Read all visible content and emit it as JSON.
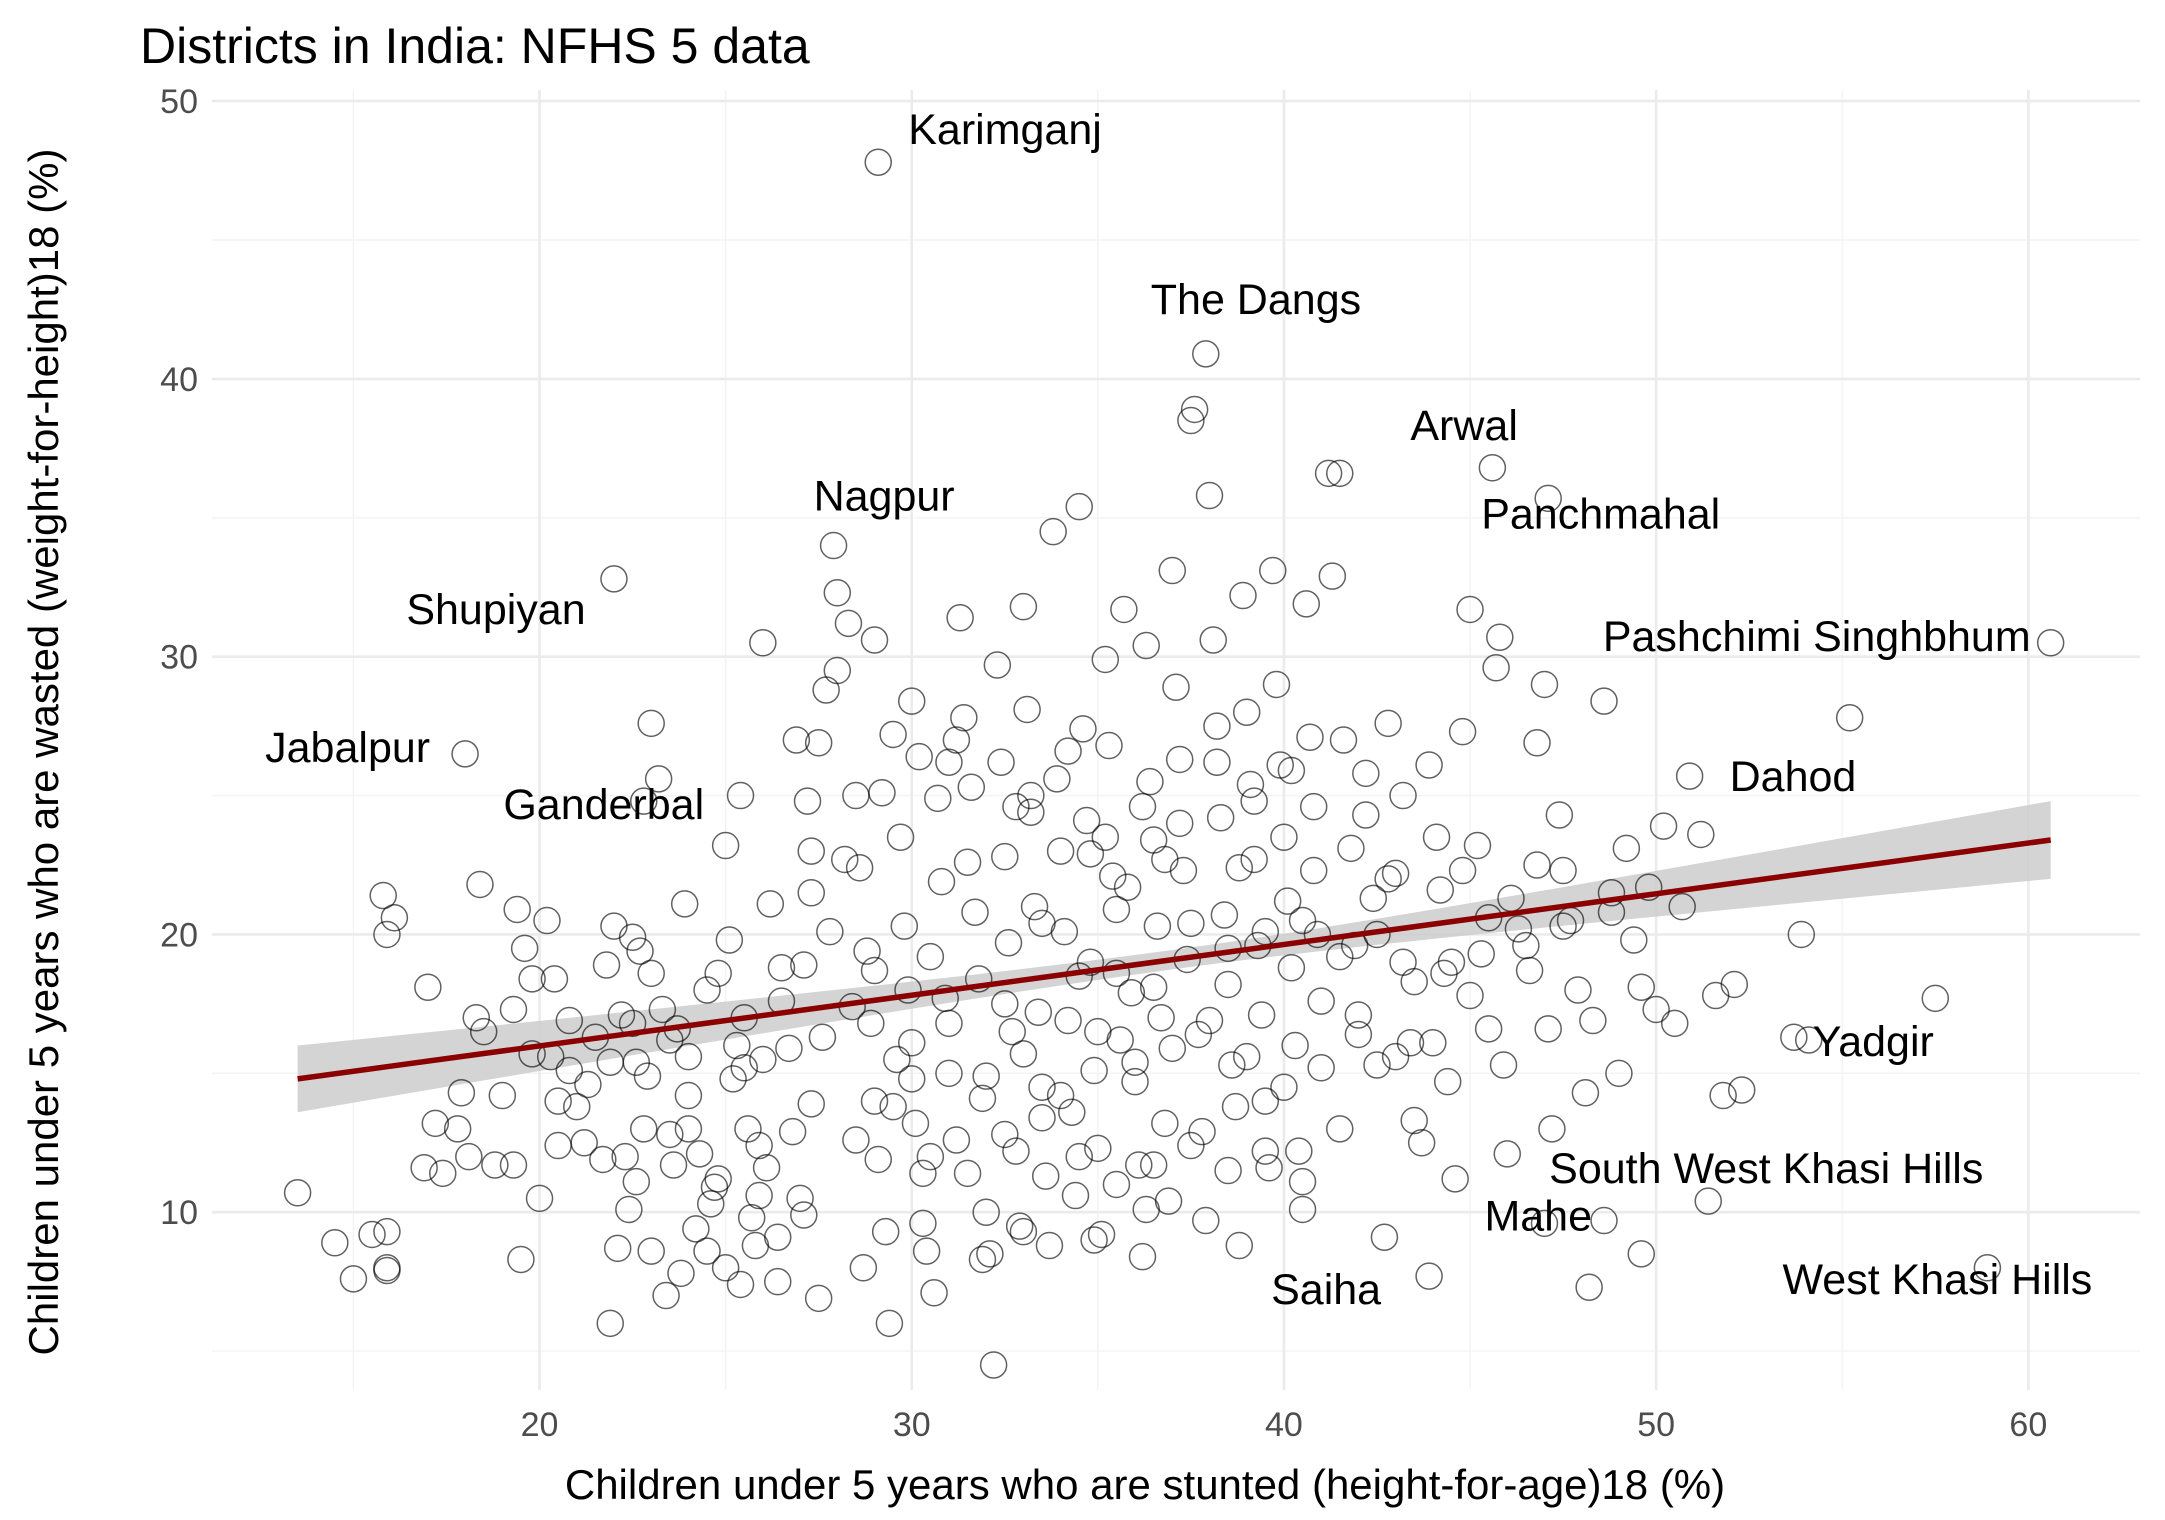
{
  "chart_data": {
    "type": "scatter",
    "title": "Districts in India: NFHS 5 data",
    "xlabel": "Children under 5 years who are stunted (height-for-age)18 (%)",
    "ylabel": "Children under 5 years who are wasted (weight-for-height)18 (%)",
    "xlim": [
      11.2,
      63.0
    ],
    "ylim": [
      3.6,
      50.4
    ],
    "x_ticks": [
      20,
      30,
      40,
      50,
      60
    ],
    "y_ticks": [
      10,
      20,
      30,
      40,
      50
    ],
    "grid": true,
    "colors": {
      "points": "#000000",
      "fit_line": "#8b0000",
      "confidence_band": "#cccccc"
    },
    "trend_line": {
      "x": [
        13.5,
        60.6
      ],
      "y": [
        14.8,
        23.4
      ],
      "band_halfwidth_ends": [
        1.2,
        1.4
      ],
      "band_halfwidth_mid": 0.35
    },
    "labeled_districts": [
      {
        "label": "Karimganj",
        "x": 29.1,
        "y": 47.8
      },
      {
        "label": "The Dangs",
        "x": 37.9,
        "y": 40.9
      },
      {
        "label": "Arwal",
        "x": 45.6,
        "y": 36.8
      },
      {
        "label": "Nagpur",
        "x": 27.9,
        "y": 34.0
      },
      {
        "label": "Panchmahal",
        "x": 47.1,
        "y": 35.7
      },
      {
        "label": "Shupiyan",
        "x": 22.0,
        "y": 32.8
      },
      {
        "label": "Pashchimi Singhbhum",
        "x": 60.6,
        "y": 30.5
      },
      {
        "label": "Jabalpur",
        "x": 18.0,
        "y": 26.5
      },
      {
        "label": "Dahod",
        "x": 50.9,
        "y": 25.7
      },
      {
        "label": "Ganderbal",
        "x": 22.8,
        "y": 24.8
      },
      {
        "label": "Yadgir",
        "x": 54.1,
        "y": 16.2
      },
      {
        "label": "South West Khasi Hills",
        "x": 51.4,
        "y": 10.4
      },
      {
        "label": "Mahe",
        "x": 48.6,
        "y": 9.7
      },
      {
        "label": "Saiha",
        "x": 43.9,
        "y": 7.7
      },
      {
        "label": "West Khasi Hills",
        "x": 58.9,
        "y": 8.0
      }
    ],
    "points": [
      [
        13.5,
        10.7
      ],
      [
        14.5,
        8.9
      ],
      [
        15.0,
        7.6
      ],
      [
        15.5,
        9.2
      ],
      [
        15.9,
        8.0
      ],
      [
        15.8,
        21.4
      ],
      [
        15.9,
        20.0
      ],
      [
        16.1,
        20.6
      ],
      [
        15.9,
        9.3
      ],
      [
        15.9,
        7.9
      ],
      [
        17.0,
        18.1
      ],
      [
        17.2,
        13.2
      ],
      [
        16.9,
        11.6
      ],
      [
        17.4,
        11.4
      ],
      [
        17.8,
        13.0
      ],
      [
        17.9,
        14.3
      ],
      [
        18.1,
        12.0
      ],
      [
        18.3,
        17.0
      ],
      [
        18.4,
        21.8
      ],
      [
        18.8,
        11.7
      ],
      [
        19.4,
        20.9
      ],
      [
        19.3,
        17.3
      ],
      [
        19.3,
        11.7
      ],
      [
        19.5,
        8.3
      ],
      [
        19.6,
        19.5
      ],
      [
        19.8,
        18.4
      ],
      [
        20.0,
        10.5
      ],
      [
        20.2,
        20.5
      ],
      [
        20.3,
        15.6
      ],
      [
        20.4,
        18.4
      ],
      [
        20.5,
        14.0
      ],
      [
        20.8,
        15.1
      ],
      [
        21.0,
        13.8
      ],
      [
        21.2,
        12.5
      ],
      [
        21.5,
        16.3
      ],
      [
        21.7,
        11.9
      ],
      [
        21.9,
        15.4
      ],
      [
        22.0,
        20.3
      ],
      [
        22.2,
        17.1
      ],
      [
        22.3,
        12.0
      ],
      [
        22.5,
        19.9
      ],
      [
        22.6,
        15.4
      ],
      [
        22.7,
        19.4
      ],
      [
        22.9,
        14.9
      ],
      [
        23.0,
        27.6
      ],
      [
        23.2,
        25.6
      ],
      [
        23.3,
        17.3
      ],
      [
        23.5,
        12.8
      ],
      [
        23.7,
        16.6
      ],
      [
        23.9,
        21.1
      ],
      [
        24.0,
        14.2
      ],
      [
        24.2,
        9.4
      ],
      [
        24.3,
        12.1
      ],
      [
        24.5,
        18.0
      ],
      [
        24.6,
        10.3
      ],
      [
        24.8,
        11.2
      ],
      [
        25.0,
        23.2
      ],
      [
        25.1,
        19.8
      ],
      [
        25.3,
        16.0
      ],
      [
        25.4,
        25.0
      ],
      [
        25.5,
        15.2
      ],
      [
        25.6,
        13.0
      ],
      [
        25.8,
        8.8
      ],
      [
        25.9,
        12.4
      ],
      [
        26.0,
        30.5
      ],
      [
        26.2,
        21.1
      ],
      [
        26.4,
        9.1
      ],
      [
        26.5,
        17.6
      ],
      [
        26.7,
        15.9
      ],
      [
        26.8,
        12.9
      ],
      [
        21.9,
        6.0
      ],
      [
        22.1,
        8.7
      ],
      [
        22.4,
        10.1
      ],
      [
        23.0,
        8.6
      ],
      [
        23.4,
        7.0
      ],
      [
        23.8,
        7.8
      ],
      [
        24.5,
        8.6
      ],
      [
        25.0,
        8.0
      ],
      [
        25.4,
        7.4
      ],
      [
        25.7,
        9.8
      ],
      [
        26.1,
        11.6
      ],
      [
        26.4,
        7.5
      ],
      [
        27.0,
        10.5
      ],
      [
        27.5,
        6.9
      ],
      [
        27.3,
        13.9
      ],
      [
        27.1,
        18.9
      ],
      [
        27.3,
        21.5
      ],
      [
        27.2,
        24.8
      ],
      [
        27.5,
        26.9
      ],
      [
        27.7,
        28.8
      ],
      [
        28.0,
        32.3
      ],
      [
        28.3,
        31.2
      ],
      [
        28.5,
        25.0
      ],
      [
        28.6,
        22.4
      ],
      [
        28.8,
        19.4
      ],
      [
        28.9,
        16.8
      ],
      [
        29.0,
        14.0
      ],
      [
        29.1,
        11.9
      ],
      [
        29.3,
        9.3
      ],
      [
        29.4,
        6.0
      ],
      [
        29.5,
        27.2
      ],
      [
        29.7,
        23.5
      ],
      [
        29.8,
        20.3
      ],
      [
        29.9,
        18.0
      ],
      [
        30.0,
        16.1
      ],
      [
        30.1,
        13.2
      ],
      [
        30.3,
        11.4
      ],
      [
        30.4,
        8.6
      ],
      [
        30.6,
        7.1
      ],
      [
        30.7,
        24.9
      ],
      [
        30.8,
        21.9
      ],
      [
        30.9,
        17.7
      ],
      [
        31.0,
        15.0
      ],
      [
        31.2,
        12.6
      ],
      [
        31.3,
        31.4
      ],
      [
        31.4,
        27.8
      ],
      [
        31.6,
        25.3
      ],
      [
        31.7,
        20.8
      ],
      [
        31.8,
        18.4
      ],
      [
        31.9,
        14.1
      ],
      [
        32.0,
        10.0
      ],
      [
        32.1,
        8.5
      ],
      [
        32.2,
        4.5
      ],
      [
        32.3,
        29.7
      ],
      [
        32.4,
        26.2
      ],
      [
        32.5,
        22.8
      ],
      [
        32.6,
        19.7
      ],
      [
        32.7,
        16.5
      ],
      [
        32.8,
        12.2
      ],
      [
        32.9,
        9.5
      ],
      [
        33.0,
        31.8
      ],
      [
        33.1,
        28.1
      ],
      [
        33.2,
        24.4
      ],
      [
        33.3,
        21.0
      ],
      [
        33.4,
        17.2
      ],
      [
        33.5,
        14.5
      ],
      [
        33.6,
        11.3
      ],
      [
        33.7,
        8.8
      ],
      [
        33.8,
        34.5
      ],
      [
        33.9,
        25.6
      ],
      [
        34.0,
        23.0
      ],
      [
        34.1,
        20.1
      ],
      [
        34.2,
        16.9
      ],
      [
        34.3,
        13.6
      ],
      [
        34.4,
        10.6
      ],
      [
        34.5,
        35.4
      ],
      [
        34.6,
        27.4
      ],
      [
        34.7,
        24.1
      ],
      [
        34.8,
        19.0
      ],
      [
        34.9,
        15.1
      ],
      [
        35.0,
        12.3
      ],
      [
        35.1,
        9.2
      ],
      [
        35.2,
        29.9
      ],
      [
        35.3,
        26.8
      ],
      [
        35.4,
        22.1
      ],
      [
        35.5,
        18.6
      ],
      [
        35.6,
        16.2
      ],
      [
        35.7,
        31.7
      ],
      [
        35.8,
        21.7
      ],
      [
        35.9,
        17.9
      ],
      [
        36.0,
        14.7
      ],
      [
        36.1,
        11.7
      ],
      [
        36.2,
        8.4
      ],
      [
        36.3,
        30.4
      ],
      [
        36.4,
        25.5
      ],
      [
        36.5,
        23.4
      ],
      [
        36.6,
        20.3
      ],
      [
        36.7,
        17.0
      ],
      [
        36.8,
        13.2
      ],
      [
        36.9,
        10.4
      ],
      [
        37.0,
        33.1
      ],
      [
        37.1,
        28.9
      ],
      [
        37.2,
        26.3
      ],
      [
        37.3,
        22.3
      ],
      [
        37.4,
        19.1
      ],
      [
        37.5,
        38.5
      ],
      [
        37.6,
        38.9
      ],
      [
        37.7,
        16.4
      ],
      [
        37.8,
        12.9
      ],
      [
        37.9,
        9.7
      ],
      [
        38.0,
        35.8
      ],
      [
        38.1,
        30.6
      ],
      [
        38.2,
        27.5
      ],
      [
        38.3,
        24.2
      ],
      [
        38.4,
        20.7
      ],
      [
        38.5,
        18.2
      ],
      [
        38.6,
        15.3
      ],
      [
        38.7,
        13.8
      ],
      [
        38.8,
        8.8
      ],
      [
        38.9,
        32.2
      ],
      [
        39.0,
        28.0
      ],
      [
        39.1,
        25.4
      ],
      [
        39.2,
        22.7
      ],
      [
        39.3,
        19.6
      ],
      [
        39.4,
        17.1
      ],
      [
        39.5,
        14.0
      ],
      [
        39.6,
        11.6
      ],
      [
        39.7,
        33.1
      ],
      [
        39.8,
        29.0
      ],
      [
        39.9,
        26.1
      ],
      [
        40.0,
        23.5
      ],
      [
        40.1,
        21.2
      ],
      [
        40.2,
        18.8
      ],
      [
        40.3,
        16.0
      ],
      [
        40.4,
        12.2
      ],
      [
        40.5,
        10.1
      ],
      [
        40.6,
        31.9
      ],
      [
        40.7,
        27.1
      ],
      [
        40.8,
        24.6
      ],
      [
        40.9,
        20.0
      ],
      [
        41.0,
        17.6
      ],
      [
        41.2,
        36.6
      ],
      [
        41.3,
        32.9
      ],
      [
        41.5,
        36.6
      ],
      [
        41.6,
        27.0
      ],
      [
        41.8,
        23.1
      ],
      [
        41.9,
        19.6
      ],
      [
        42.0,
        17.1
      ],
      [
        42.2,
        25.8
      ],
      [
        42.4,
        21.3
      ],
      [
        42.5,
        15.3
      ],
      [
        42.7,
        9.1
      ],
      [
        42.8,
        27.6
      ],
      [
        43.0,
        22.2
      ],
      [
        43.2,
        19.0
      ],
      [
        43.4,
        16.1
      ],
      [
        43.5,
        13.3
      ],
      [
        43.7,
        12.5
      ],
      [
        43.9,
        26.1
      ],
      [
        44.1,
        23.5
      ],
      [
        44.2,
        21.6
      ],
      [
        44.3,
        18.6
      ],
      [
        44.4,
        14.7
      ],
      [
        44.6,
        11.2
      ],
      [
        44.8,
        27.3
      ],
      [
        45.0,
        31.7
      ],
      [
        45.2,
        23.2
      ],
      [
        45.3,
        19.3
      ],
      [
        45.5,
        16.6
      ],
      [
        45.7,
        29.6
      ],
      [
        45.8,
        30.7
      ],
      [
        45.9,
        15.3
      ],
      [
        46.0,
        12.1
      ],
      [
        46.1,
        21.3
      ],
      [
        46.3,
        20.2
      ],
      [
        46.6,
        18.7
      ],
      [
        46.8,
        26.9
      ],
      [
        47.0,
        29.0
      ],
      [
        47.1,
        16.6
      ],
      [
        47.2,
        13.0
      ],
      [
        47.4,
        24.3
      ],
      [
        47.5,
        22.3
      ],
      [
        47.7,
        20.5
      ],
      [
        47.9,
        18.0
      ],
      [
        48.1,
        14.3
      ],
      [
        48.3,
        16.9
      ],
      [
        48.6,
        28.4
      ],
      [
        48.8,
        21.5
      ],
      [
        49.0,
        15.0
      ],
      [
        49.2,
        23.1
      ],
      [
        49.4,
        19.8
      ],
      [
        49.6,
        18.1
      ],
      [
        49.8,
        21.7
      ],
      [
        50.0,
        17.3
      ],
      [
        50.2,
        23.9
      ],
      [
        50.5,
        16.8
      ],
      [
        50.7,
        21.0
      ],
      [
        51.2,
        23.6
      ],
      [
        51.6,
        17.8
      ],
      [
        51.8,
        14.2
      ],
      [
        52.1,
        18.2
      ],
      [
        52.3,
        14.4
      ],
      [
        53.7,
        16.3
      ],
      [
        53.9,
        20.0
      ],
      [
        55.2,
        27.8
      ],
      [
        57.5,
        17.7
      ],
      [
        49.6,
        8.5
      ],
      [
        48.2,
        7.3
      ],
      [
        47.0,
        9.6
      ],
      [
        20.8,
        16.9
      ],
      [
        21.3,
        14.6
      ],
      [
        22.8,
        13.0
      ],
      [
        24.0,
        15.6
      ],
      [
        25.2,
        14.8
      ],
      [
        26.5,
        18.8
      ],
      [
        27.8,
        20.1
      ],
      [
        28.4,
        17.4
      ],
      [
        29.6,
        15.5
      ],
      [
        30.5,
        19.2
      ],
      [
        31.5,
        22.6
      ],
      [
        32.5,
        17.5
      ],
      [
        33.5,
        20.4
      ],
      [
        34.5,
        18.5
      ],
      [
        35.5,
        20.9
      ],
      [
        36.5,
        18.1
      ],
      [
        37.5,
        20.4
      ],
      [
        38.5,
        19.5
      ],
      [
        39.5,
        20.1
      ],
      [
        40.5,
        20.5
      ],
      [
        41.5,
        19.2
      ],
      [
        42.5,
        20.0
      ],
      [
        43.5,
        18.3
      ],
      [
        44.5,
        19.0
      ],
      [
        45.5,
        20.6
      ],
      [
        46.5,
        19.6
      ],
      [
        47.5,
        20.3
      ],
      [
        28.2,
        22.7
      ],
      [
        29.2,
        25.1
      ],
      [
        30.2,
        26.4
      ],
      [
        31.2,
        27.0
      ],
      [
        33.2,
        25.0
      ],
      [
        34.2,
        26.6
      ],
      [
        35.2,
        23.5
      ],
      [
        36.2,
        24.6
      ],
      [
        37.2,
        24.0
      ],
      [
        38.2,
        26.2
      ],
      [
        39.2,
        24.8
      ],
      [
        40.2,
        25.9
      ],
      [
        42.2,
        24.3
      ],
      [
        43.2,
        25.0
      ],
      [
        27.6,
        16.3
      ],
      [
        29.0,
        18.7
      ],
      [
        30.0,
        14.8
      ],
      [
        31.0,
        16.8
      ],
      [
        32.0,
        14.9
      ],
      [
        33.0,
        15.7
      ],
      [
        34.0,
        14.2
      ],
      [
        35.0,
        16.5
      ],
      [
        36.0,
        15.4
      ],
      [
        37.0,
        15.9
      ],
      [
        38.0,
        16.9
      ],
      [
        39.0,
        15.6
      ],
      [
        40.0,
        14.5
      ],
      [
        41.0,
        15.2
      ],
      [
        42.0,
        16.4
      ],
      [
        43.0,
        15.6
      ],
      [
        44.0,
        16.1
      ],
      [
        45.0,
        17.8
      ],
      [
        28.5,
        12.6
      ],
      [
        29.5,
        13.8
      ],
      [
        30.5,
        12.0
      ],
      [
        31.5,
        11.4
      ],
      [
        32.5,
        12.8
      ],
      [
        33.5,
        13.4
      ],
      [
        34.5,
        12.0
      ],
      [
        35.5,
        11.0
      ],
      [
        36.5,
        11.7
      ],
      [
        37.5,
        12.4
      ],
      [
        38.5,
        11.5
      ],
      [
        39.5,
        12.2
      ],
      [
        40.5,
        11.1
      ],
      [
        41.5,
        13.0
      ],
      [
        26.0,
        15.5
      ],
      [
        25.5,
        17.0
      ],
      [
        24.8,
        18.6
      ],
      [
        24.0,
        13.0
      ],
      [
        23.5,
        16.2
      ],
      [
        23.0,
        18.6
      ],
      [
        22.5,
        16.8
      ],
      [
        21.8,
        18.9
      ],
      [
        20.5,
        12.4
      ],
      [
        19.8,
        15.7
      ],
      [
        19.0,
        14.2
      ],
      [
        18.5,
        16.5
      ],
      [
        26.9,
        27.0
      ],
      [
        28.0,
        29.5
      ],
      [
        29.0,
        30.6
      ],
      [
        30.0,
        28.4
      ],
      [
        31.0,
        26.2
      ],
      [
        27.3,
        23.0
      ],
      [
        32.8,
        24.6
      ],
      [
        34.8,
        22.9
      ],
      [
        36.8,
        22.7
      ],
      [
        38.8,
        22.4
      ],
      [
        40.8,
        22.3
      ],
      [
        42.8,
        22.0
      ],
      [
        44.8,
        22.3
      ],
      [
        46.8,
        22.5
      ],
      [
        48.8,
        20.8
      ],
      [
        36.3,
        10.1
      ],
      [
        34.9,
        9.0
      ],
      [
        33.0,
        9.3
      ],
      [
        31.9,
        8.3
      ],
      [
        30.3,
        9.6
      ],
      [
        28.7,
        8.0
      ],
      [
        27.1,
        9.9
      ],
      [
        25.9,
        10.6
      ],
      [
        24.7,
        10.9
      ],
      [
        23.6,
        11.7
      ],
      [
        22.6,
        11.1
      ]
    ]
  }
}
